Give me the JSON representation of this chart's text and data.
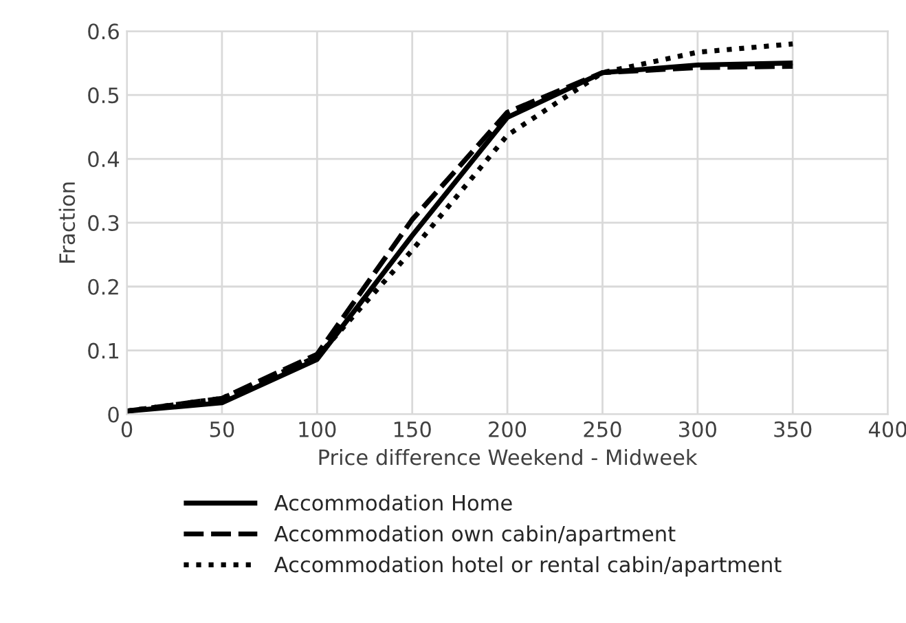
{
  "chart_data": {
    "type": "line",
    "xlabel": "Price difference Weekend - Midweek",
    "ylabel": "Fraction",
    "x": [
      0,
      50,
      100,
      150,
      200,
      250,
      300,
      350
    ],
    "series": [
      {
        "name": "Accommodation Home",
        "color": "#000000",
        "line_style": "solid",
        "values": [
          0.005,
          0.018,
          0.086,
          0.28,
          0.465,
          0.535,
          0.547,
          0.55
        ]
      },
      {
        "name": "Accommodation own cabin/apartment",
        "color": "#000000",
        "line_style": "dashed",
        "values": [
          0.005,
          0.025,
          0.094,
          0.305,
          0.473,
          0.535,
          0.543,
          0.545
        ]
      },
      {
        "name": "Accommodation hotel or rental cabin/apartment",
        "color": "#000000",
        "line_style": "dotted",
        "values": [
          0.005,
          0.025,
          0.09,
          0.257,
          0.437,
          0.535,
          0.567,
          0.58
        ]
      }
    ],
    "xlim": [
      0,
      400
    ],
    "xticks": [
      0,
      50,
      100,
      150,
      200,
      250,
      300,
      350,
      400
    ],
    "ylim": [
      0,
      0.6
    ],
    "yticks": [
      0,
      0.1,
      0.2,
      0.3,
      0.4,
      0.5,
      0.6
    ],
    "grid": true,
    "legend": "bottom",
    "marker": "none"
  }
}
